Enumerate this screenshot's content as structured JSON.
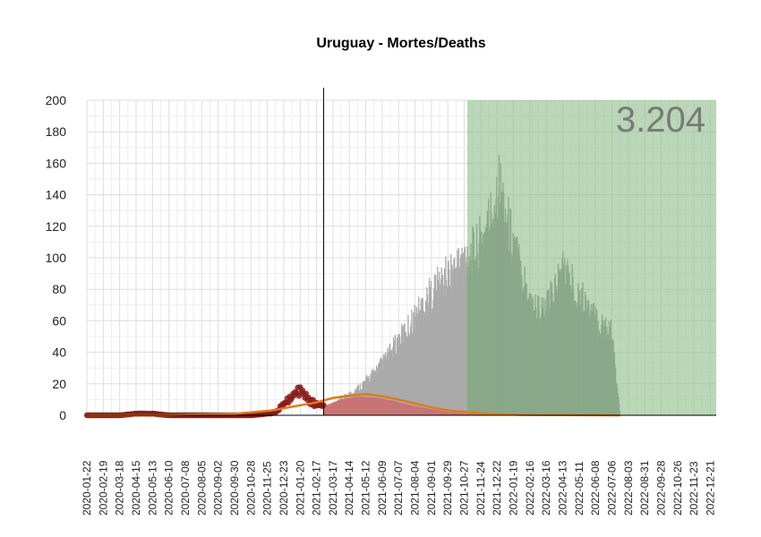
{
  "chart_data": {
    "type": "bar",
    "title": "Uruguay - Mortes/Deaths",
    "xlabel": "",
    "ylabel": "",
    "ylim": [
      0,
      200
    ],
    "y_ticks": [
      0,
      20,
      40,
      60,
      80,
      100,
      120,
      140,
      160,
      180,
      200
    ],
    "x_range": [
      "2020-01-22",
      "2022-12-31"
    ],
    "x_ticks": [
      "2020-01-22",
      "2020-02-19",
      "2020-03-18",
      "2020-04-15",
      "2020-05-13",
      "2020-06-10",
      "2020-07-08",
      "2020-08-05",
      "2020-09-02",
      "2020-09-30",
      "2020-10-28",
      "2020-11-25",
      "2020-12-23",
      "2021-01-20",
      "2021-02-17",
      "2021-03-17",
      "2021-04-14",
      "2021-05-12",
      "2021-06-09",
      "2021-07-07",
      "2021-08-04",
      "2021-09-01",
      "2021-09-29",
      "2021-10-27",
      "2021-11-24",
      "2021-12-22",
      "2022-01-19",
      "2022-02-16",
      "2022-03-16",
      "2022-04-13",
      "2022-05-11",
      "2022-06-08",
      "2022-07-06",
      "2022-08-03",
      "2022-08-31",
      "2022-09-28",
      "2022-10-26",
      "2022-11-23",
      "2022-12-21"
    ],
    "grid": true,
    "reference_line_date": "2021-03-01",
    "shaded_region": {
      "start": "2021-11-01",
      "end": "2022-12-31",
      "color": "#8fbf8a"
    },
    "total_label": "3.204",
    "colors": {
      "observed_points": "#8b1a1a",
      "projection_bars": "#aaaaaa",
      "projection_bars_in_region": "#8aa989",
      "lower_band": "#cd6b6b",
      "fit_line": "#e07b16"
    },
    "series": [
      {
        "type": "bar",
        "color_key": "projection_bars",
        "points": [
          [
            "2021-03-01",
            5
          ],
          [
            "2021-03-22",
            9
          ],
          [
            "2021-04-12",
            14
          ],
          [
            "2021-05-03",
            20
          ],
          [
            "2021-05-24",
            28
          ],
          [
            "2021-06-14",
            38
          ],
          [
            "2021-07-05",
            50
          ],
          [
            "2021-07-26",
            62
          ],
          [
            "2021-08-16",
            75
          ],
          [
            "2021-09-06",
            86
          ],
          [
            "2021-09-27",
            95
          ],
          [
            "2021-10-18",
            103
          ],
          [
            "2021-11-01",
            110
          ],
          [
            "2021-11-15",
            112
          ],
          [
            "2021-12-01",
            125
          ],
          [
            "2021-12-15",
            140
          ],
          [
            "2021-12-24",
            160
          ],
          [
            "2022-01-10",
            130
          ],
          [
            "2022-01-31",
            100
          ],
          [
            "2022-02-21",
            75
          ],
          [
            "2022-03-14",
            70
          ],
          [
            "2022-03-28",
            85
          ],
          [
            "2022-04-13",
            100
          ],
          [
            "2022-05-02",
            88
          ],
          [
            "2022-05-23",
            75
          ],
          [
            "2022-06-13",
            62
          ],
          [
            "2022-07-04",
            60
          ],
          [
            "2022-07-20",
            0
          ]
        ]
      },
      {
        "type": "area",
        "color_key": "lower_band",
        "points": [
          [
            "2021-03-01",
            6
          ],
          [
            "2021-04-01",
            10
          ],
          [
            "2021-05-01",
            12
          ],
          [
            "2021-06-01",
            11
          ],
          [
            "2021-07-01",
            9
          ],
          [
            "2021-08-01",
            6
          ],
          [
            "2021-09-01",
            4
          ],
          [
            "2021-10-01",
            2
          ],
          [
            "2021-11-01",
            1
          ],
          [
            "2022-01-01",
            0
          ]
        ]
      },
      {
        "type": "scatter",
        "color_key": "observed_points",
        "points": [
          [
            "2020-01-22",
            0
          ],
          [
            "2020-02-19",
            0
          ],
          [
            "2020-03-18",
            0
          ],
          [
            "2020-04-15",
            1
          ],
          [
            "2020-05-13",
            1
          ],
          [
            "2020-06-10",
            0
          ],
          [
            "2020-07-08",
            0
          ],
          [
            "2020-08-05",
            0
          ],
          [
            "2020-09-02",
            0
          ],
          [
            "2020-09-30",
            0
          ],
          [
            "2020-10-28",
            0
          ],
          [
            "2020-11-25",
            1
          ],
          [
            "2020-12-10",
            2
          ],
          [
            "2020-12-23",
            7
          ],
          [
            "2021-01-05",
            12
          ],
          [
            "2021-01-20",
            16
          ],
          [
            "2021-02-05",
            9
          ],
          [
            "2021-02-17",
            7
          ],
          [
            "2021-03-01",
            6
          ]
        ]
      },
      {
        "type": "line",
        "color_key": "fit_line",
        "points": [
          [
            "2020-01-22",
            0
          ],
          [
            "2020-06-01",
            0
          ],
          [
            "2020-10-01",
            1
          ],
          [
            "2020-12-01",
            3
          ],
          [
            "2021-01-15",
            6
          ],
          [
            "2021-02-15",
            8
          ],
          [
            "2021-03-17",
            11
          ],
          [
            "2021-04-14",
            12.5
          ],
          [
            "2021-05-12",
            13.5
          ],
          [
            "2021-06-09",
            12
          ],
          [
            "2021-07-07",
            10
          ],
          [
            "2021-08-04",
            7.5
          ],
          [
            "2021-09-01",
            5
          ],
          [
            "2021-10-01",
            3
          ],
          [
            "2021-11-01",
            2
          ],
          [
            "2021-12-01",
            1
          ],
          [
            "2022-02-01",
            0.3
          ],
          [
            "2022-07-20",
            0
          ]
        ]
      }
    ]
  }
}
